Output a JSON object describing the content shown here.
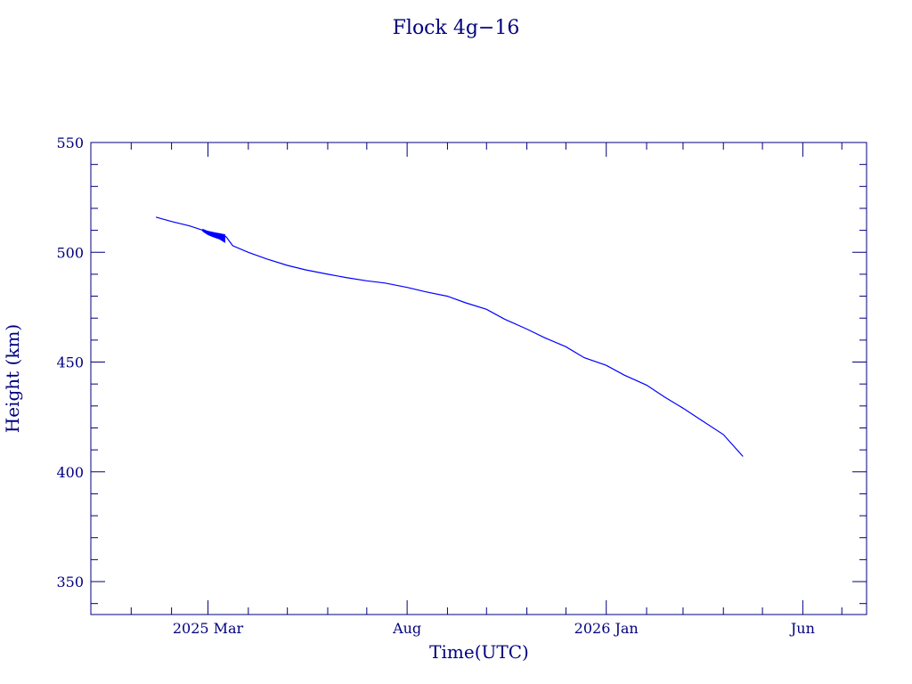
{
  "chart_data": {
    "type": "line",
    "title": "Flock 4g−16",
    "xlabel": "Time(UTC)",
    "ylabel": "Height (km)",
    "ylim": [
      335,
      550
    ],
    "xlim": [
      "2024-12-01",
      "2026-07-20"
    ],
    "y_ticks": [
      350,
      400,
      450,
      500,
      550
    ],
    "x_ticks": [
      {
        "label": "2025 Mar",
        "date": "2025-03-01"
      },
      {
        "label": "Aug",
        "date": "2025-08-01"
      },
      {
        "label": "2026 Jan",
        "date": "2026-01-01"
      },
      {
        "label": "Jun",
        "date": "2026-06-01"
      }
    ],
    "grid": false,
    "legend": "none",
    "colors": {
      "axis": "#00007f",
      "series": "#0000ff"
    },
    "series": [
      {
        "x": [
          "2025-01-20",
          "2025-02-01",
          "2025-02-15",
          "2025-02-25",
          "2025-03-05",
          "2025-03-12",
          "2025-03-15",
          "2025-03-20",
          "2025-04-01",
          "2025-04-15",
          "2025-05-01",
          "2025-05-15",
          "2025-06-01",
          "2025-06-15",
          "2025-07-01",
          "2025-07-15",
          "2025-08-01",
          "2025-08-15",
          "2025-09-01",
          "2025-09-15",
          "2025-10-01",
          "2025-10-15",
          "2025-11-01",
          "2025-11-15",
          "2025-12-01",
          "2025-12-15",
          "2026-01-01",
          "2026-01-15",
          "2026-02-01",
          "2026-02-15",
          "2026-03-01",
          "2026-03-15",
          "2026-04-01",
          "2026-04-16"
        ],
        "y": [
          516,
          514,
          512,
          510,
          509,
          508,
          507,
          503,
          500,
          497,
          494,
          492,
          490,
          488.5,
          487,
          486,
          484,
          482,
          480,
          477,
          474,
          469.5,
          465,
          461,
          457,
          452,
          448.5,
          444,
          439.5,
          434,
          429,
          423.5,
          417,
          407
        ],
        "band": {
          "x": [
            "2025-02-25",
            "2025-03-01",
            "2025-03-05",
            "2025-03-10",
            "2025-03-14"
          ],
          "upper": [
            510.5,
            509.5,
            509,
            508.5,
            508
          ],
          "lower": [
            509.5,
            508,
            507,
            506,
            504.5
          ]
        }
      }
    ]
  }
}
